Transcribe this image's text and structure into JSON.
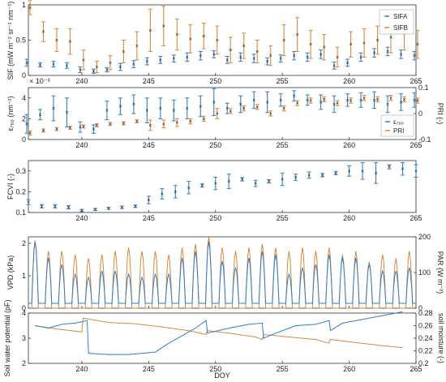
{
  "figure": {
    "xlabel": "DOY",
    "x_ticks": [
      240,
      245,
      250,
      255,
      260,
      265
    ],
    "xlim": [
      236,
      265
    ]
  },
  "colors": {
    "blue": "#2f7fc8",
    "orange": "#d9883a"
  },
  "chart_data": [
    {
      "id": "sif",
      "type": "scatter",
      "ylabel": "SIF (mW m⁻² sr⁻¹ nm⁻¹)",
      "ylim": [
        0,
        1
      ],
      "y_ticks": [
        "0",
        "0.5",
        "1"
      ],
      "legend": [
        "SIFA",
        "SIFB"
      ],
      "legend_position": "top-right",
      "series": [
        {
          "name": "SIFA",
          "x": [
            236,
            237,
            238,
            239,
            240,
            241,
            242,
            243,
            244,
            245,
            246,
            247,
            248,
            249,
            250,
            251,
            252,
            253,
            254,
            255,
            256,
            257,
            258,
            259,
            260,
            261,
            262,
            263,
            264,
            265
          ],
          "y": [
            0.18,
            0.15,
            0.16,
            0.14,
            0.08,
            0.06,
            0.08,
            0.12,
            0.16,
            0.2,
            0.22,
            0.24,
            0.26,
            0.28,
            0.3,
            0.22,
            0.26,
            0.24,
            0.2,
            0.24,
            0.28,
            0.26,
            0.3,
            0.14,
            0.18,
            0.26,
            0.32,
            0.34,
            0.3,
            0.28
          ],
          "err": [
            0.05,
            0.03,
            0.04,
            0.04,
            0.04,
            0.03,
            0.03,
            0.05,
            0.05,
            0.05,
            0.05,
            0.05,
            0.06,
            0.06,
            0.05,
            0.05,
            0.06,
            0.06,
            0.05,
            0.05,
            0.06,
            0.06,
            0.06,
            0.05,
            0.05,
            0.06,
            0.06,
            0.06,
            0.06,
            0.06
          ]
        },
        {
          "name": "SIFB",
          "x": [
            236,
            237,
            238,
            239,
            240,
            241,
            242,
            243,
            244,
            245,
            246,
            247,
            248,
            249,
            250,
            251,
            252,
            253,
            254,
            255,
            256,
            257,
            258,
            259,
            260,
            261,
            262,
            263,
            264,
            265
          ],
          "y": [
            0.96,
            0.62,
            0.5,
            0.48,
            0.22,
            0.12,
            0.18,
            0.34,
            0.42,
            0.64,
            0.7,
            0.58,
            0.52,
            0.56,
            0.5,
            0.36,
            0.42,
            0.34,
            0.28,
            0.5,
            0.58,
            0.44,
            0.4,
            0.26,
            0.44,
            0.46,
            0.5,
            0.54,
            0.6,
            0.44
          ],
          "err": [
            0.1,
            0.14,
            0.16,
            0.18,
            0.14,
            0.08,
            0.1,
            0.16,
            0.2,
            0.3,
            0.28,
            0.22,
            0.2,
            0.18,
            0.2,
            0.18,
            0.18,
            0.16,
            0.14,
            0.22,
            0.24,
            0.2,
            0.18,
            0.14,
            0.18,
            0.2,
            0.2,
            0.22,
            0.24,
            0.2
          ]
        }
      ]
    },
    {
      "id": "eps",
      "type": "scatter",
      "ylabel": "ε₇₆₀ (nm⁻¹)",
      "y_exponent": "× 10⁻³",
      "ylim": [
        0,
        5
      ],
      "y_ticks": [
        "0",
        "2",
        "4"
      ],
      "y2label": "PRI (-)",
      "y2lim": [
        -0.1,
        0.1
      ],
      "y2_ticks": [
        "0.1",
        "0",
        "-0.1"
      ],
      "legend": [
        "ε₇₆₀",
        "PRI"
      ],
      "legend_position": "right",
      "series": [
        {
          "name": "ε760",
          "x": [
            236,
            237,
            238,
            239,
            240,
            241,
            242,
            243,
            244,
            245,
            246,
            247,
            248,
            249,
            250,
            251,
            252,
            253,
            254,
            255,
            256,
            257,
            258,
            259,
            260,
            261,
            262,
            263,
            264,
            265
          ],
          "y": [
            1.5,
            2.4,
            3.0,
            2.6,
            1.2,
            1.0,
            2.8,
            3.2,
            3.4,
            2.8,
            3.0,
            2.8,
            3.0,
            3.2,
            3.6,
            3.0,
            3.4,
            3.8,
            3.6,
            3.8,
            4.2,
            3.8,
            3.6,
            3.4,
            3.8,
            3.8,
            3.8,
            3.4,
            3.6,
            3.8
          ],
          "err": [
            0.9,
            0.5,
            1.2,
            1.4,
            0.5,
            0.4,
            0.9,
            0.8,
            0.9,
            1.2,
            1.0,
            1.0,
            1.0,
            1.0,
            1.3,
            0.5,
            0.8,
            0.8,
            1.0,
            0.6,
            0.5,
            0.5,
            0.7,
            0.8,
            0.6,
            0.7,
            0.8,
            0.8,
            0.8,
            0.7
          ]
        },
        {
          "name": "PRI",
          "axis": "right",
          "x": [
            236,
            237,
            238,
            239,
            240,
            241,
            242,
            243,
            244,
            245,
            246,
            247,
            248,
            249,
            250,
            251,
            252,
            253,
            254,
            255,
            256,
            257,
            258,
            259,
            260,
            261,
            262,
            263,
            264,
            265
          ],
          "y": [
            -0.075,
            -0.065,
            -0.06,
            -0.055,
            -0.05,
            -0.045,
            -0.04,
            -0.038,
            -0.03,
            -0.045,
            -0.04,
            -0.035,
            -0.03,
            -0.02,
            0.0,
            0.01,
            0.02,
            0.025,
            0.0,
            0.02,
            0.04,
            0.05,
            0.055,
            0.04,
            0.05,
            0.06,
            0.055,
            0.06,
            0.055,
            0.05
          ],
          "err": [
            0.008,
            0.006,
            0.006,
            0.006,
            0.006,
            0.006,
            0.006,
            0.006,
            0.006,
            0.02,
            0.015,
            0.015,
            0.01,
            0.01,
            0.02,
            0.01,
            0.01,
            0.01,
            0.01,
            0.01,
            0.01,
            0.01,
            0.01,
            0.01,
            0.01,
            0.01,
            0.01,
            0.01,
            0.01,
            0.01
          ]
        }
      ]
    },
    {
      "id": "fcvi",
      "type": "scatter",
      "ylabel": "FCVI (-)",
      "ylim": [
        0.1,
        0.35
      ],
      "y_ticks": [
        "0.1",
        "0.2",
        "0.3"
      ],
      "series": [
        {
          "name": "FCVI",
          "x": [
            236,
            237,
            238,
            239,
            240,
            241,
            242,
            243,
            244,
            245,
            246,
            247,
            248,
            249,
            250,
            251,
            252,
            253,
            254,
            255,
            256,
            257,
            258,
            259,
            260,
            261,
            262,
            263,
            264,
            265
          ],
          "y": [
            0.15,
            0.13,
            0.13,
            0.125,
            0.11,
            0.115,
            0.12,
            0.125,
            0.13,
            0.16,
            0.19,
            0.2,
            0.22,
            0.23,
            0.24,
            0.25,
            0.26,
            0.24,
            0.25,
            0.26,
            0.27,
            0.28,
            0.28,
            0.29,
            0.3,
            0.3,
            0.29,
            0.32,
            0.31,
            0.3
          ],
          "err": [
            0.012,
            0.008,
            0.008,
            0.008,
            0.005,
            0.005,
            0.005,
            0.006,
            0.006,
            0.018,
            0.025,
            0.03,
            0.03,
            0.008,
            0.03,
            0.035,
            0.008,
            0.015,
            0.008,
            0.03,
            0.015,
            0.015,
            0.008,
            0.008,
            0.025,
            0.04,
            0.05,
            0.01,
            0.03,
            0.03
          ]
        }
      ]
    },
    {
      "id": "vpd",
      "type": "line",
      "ylabel": "VPD (kPa)",
      "ylim": [
        0,
        2.2
      ],
      "y_ticks": [
        "0",
        "1",
        "2"
      ],
      "y2label": "PAR (W m⁻²)",
      "y2lim": [
        0,
        200
      ],
      "y2_ticks": [
        "200",
        "100",
        "0"
      ],
      "series": [
        {
          "name": "VPD",
          "daily_peaks": [
            1.9,
            1.4,
            1.2,
            0.9,
            0.8,
            1.0,
            1.0,
            0.9,
            0.8,
            0.9,
            0.9,
            1.4,
            1.6,
            1.9,
            1.3,
            1.1,
            1.4,
            1.6,
            1.5,
            0.9,
            1.1,
            1.2,
            1.5,
            1.4,
            1.4,
            1.2,
            1.0,
            1.0,
            1.1
          ]
        },
        {
          "name": "PAR",
          "axis": "right",
          "daily_peaks": [
            190,
            160,
            160,
            150,
            140,
            150,
            160,
            170,
            160,
            160,
            150,
            170,
            180,
            200,
            170,
            160,
            170,
            180,
            170,
            160,
            170,
            160,
            170,
            150,
            160,
            130,
            150,
            140,
            160
          ]
        }
      ]
    },
    {
      "id": "soil",
      "type": "line",
      "ylabel": "Soil water potential (pF)",
      "ylim": [
        2,
        4
      ],
      "y_ticks": [
        "2",
        "3",
        "4"
      ],
      "y2label": "soil moisture (-)",
      "y2lim": [
        0.2,
        0.28
      ],
      "y2_ticks": [
        "0.28",
        "0.26",
        "0.24",
        "0.22",
        "0.2"
      ],
      "series": [
        {
          "name": "soil water potential",
          "x": [
            236.5,
            237.5,
            238.5,
            239.5,
            240.4,
            240.5,
            242.0,
            243.5,
            244.5,
            245.5,
            246.5,
            247.5,
            248.5,
            249.3,
            249.4,
            251.0,
            252.5,
            253.5,
            253.6,
            254.5,
            256.0,
            257.5,
            258.5,
            258.6,
            259.5,
            261.0,
            262.5,
            263.5,
            264.0
          ],
          "y": [
            3.5,
            3.4,
            3.55,
            3.6,
            3.7,
            2.4,
            2.35,
            2.35,
            2.4,
            2.45,
            2.8,
            3.1,
            3.4,
            3.7,
            3.2,
            3.4,
            3.55,
            3.6,
            3.0,
            3.2,
            3.5,
            3.55,
            3.7,
            3.3,
            3.6,
            3.75,
            3.9,
            4.0,
            4.05
          ]
        },
        {
          "name": "soil moisture",
          "axis": "right",
          "x": [
            236.5,
            238.0,
            240.0,
            240.1,
            242.0,
            244.0,
            246.0,
            248.0,
            249.3,
            249.4,
            251.0,
            253.0,
            253.5,
            253.6,
            255.5,
            257.5,
            258.5,
            258.6,
            260.5,
            262.5,
            264.0
          ],
          "y": [
            0.26,
            0.255,
            0.25,
            0.272,
            0.265,
            0.263,
            0.258,
            0.252,
            0.246,
            0.252,
            0.248,
            0.242,
            0.238,
            0.246,
            0.242,
            0.238,
            0.232,
            0.238,
            0.233,
            0.228,
            0.225
          ]
        }
      ]
    }
  ]
}
